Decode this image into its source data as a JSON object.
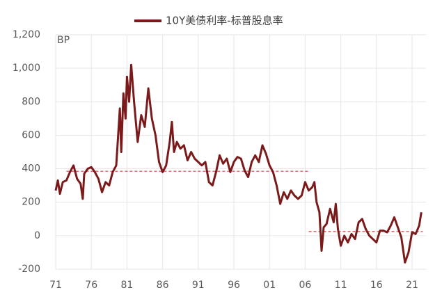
{
  "chart_data": {
    "type": "line",
    "series": [
      {
        "name": "10Y美债利率-标普股息率",
        "color": "#7b1a1a",
        "x": [
          1971.0,
          1971.3,
          1971.6,
          1972,
          1972.5,
          1973,
          1973.5,
          1974,
          1974.5,
          1974.8,
          1975,
          1975.5,
          1976,
          1976.5,
          1977,
          1977.5,
          1978,
          1978.5,
          1979,
          1979.5,
          1980,
          1980.2,
          1980.5,
          1980.8,
          1981,
          1981.3,
          1981.6,
          1982,
          1982.5,
          1983,
          1983.5,
          1984,
          1984.5,
          1985,
          1985.5,
          1986,
          1986.5,
          1987,
          1987.3,
          1987.6,
          1988,
          1988.5,
          1989,
          1989.5,
          1990,
          1990.5,
          1991,
          1991.5,
          1992,
          1992.5,
          1993,
          1993.5,
          1994,
          1994.5,
          1995,
          1995.5,
          1996,
          1996.5,
          1997,
          1997.5,
          1998,
          1998.5,
          1999,
          1999.5,
          2000,
          2000.5,
          2001,
          2001.5,
          2002,
          2002.5,
          2003,
          2003.5,
          2004,
          2004.5,
          2005,
          2005.5,
          2006,
          2006.5,
          2007,
          2007.3,
          2007.6,
          2008,
          2008.3,
          2008.6,
          2009,
          2009.5,
          2010,
          2010.3,
          2010.6,
          2011,
          2011.5,
          2012,
          2012.5,
          2013,
          2013.5,
          2014,
          2014.5,
          2015,
          2015.5,
          2016,
          2016.5,
          2017,
          2017.5,
          2018,
          2018.5,
          2019,
          2019.5,
          2020,
          2020.5,
          2021,
          2021.5,
          2022,
          2022.3
        ],
        "values": [
          270,
          330,
          250,
          320,
          330,
          380,
          420,
          340,
          310,
          220,
          370,
          400,
          410,
          380,
          340,
          260,
          320,
          300,
          380,
          420,
          760,
          500,
          850,
          700,
          950,
          800,
          1020,
          800,
          560,
          720,
          650,
          880,
          700,
          600,
          440,
          380,
          420,
          560,
          680,
          500,
          560,
          520,
          540,
          450,
          500,
          460,
          440,
          420,
          440,
          320,
          300,
          380,
          480,
          430,
          460,
          380,
          440,
          470,
          460,
          390,
          350,
          440,
          480,
          440,
          540,
          490,
          420,
          380,
          300,
          190,
          260,
          220,
          270,
          240,
          220,
          240,
          320,
          270,
          290,
          320,
          200,
          140,
          -90,
          50,
          70,
          160,
          80,
          190,
          40,
          -60,
          0,
          -40,
          10,
          -20,
          80,
          100,
          40,
          0,
          -20,
          -40,
          30,
          30,
          20,
          60,
          110,
          50,
          -10,
          -160,
          -100,
          20,
          10,
          60,
          140
        ]
      }
    ],
    "reference_lines": [
      {
        "x": [
          1972.5,
          2006.5
        ],
        "value": 385,
        "color": "#d04040"
      },
      {
        "x": [
          2006.5,
          2022.5
        ],
        "value": 25,
        "color": "#d04040"
      }
    ],
    "unit_label": "BP",
    "xlim": [
      1971,
      2021
    ],
    "xticks": [
      {
        "value": 1971,
        "label": "71"
      },
      {
        "value": 1976,
        "label": "76"
      },
      {
        "value": 1981,
        "label": "81"
      },
      {
        "value": 1986,
        "label": "86"
      },
      {
        "value": 1991,
        "label": "91"
      },
      {
        "value": 1996,
        "label": "96"
      },
      {
        "value": 2001,
        "label": "01"
      },
      {
        "value": 2006,
        "label": "06"
      },
      {
        "value": 2011,
        "label": "11"
      },
      {
        "value": 2016,
        "label": "16"
      },
      {
        "value": 2021,
        "label": "21"
      }
    ],
    "ylim": [
      -200,
      1200
    ],
    "yticks": [
      -200,
      0,
      200,
      400,
      600,
      800,
      {
        "value": 1000,
        "label": "1,000"
      },
      {
        "value": 1200,
        "label": "1,200"
      }
    ],
    "grid": true
  }
}
